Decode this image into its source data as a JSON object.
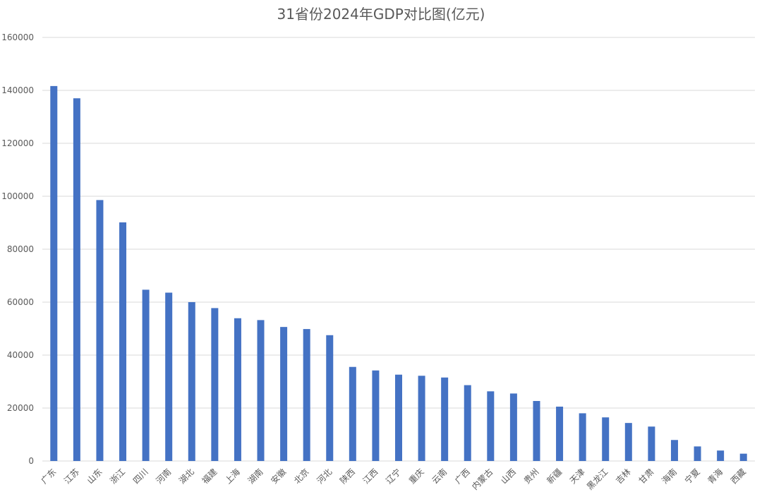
{
  "chart_data": {
    "type": "bar",
    "title": "31省份2024年GDP对比图(亿元)",
    "xlabel": "",
    "ylabel": "",
    "ylim": [
      0,
      160000
    ],
    "yticks": [
      0,
      20000,
      40000,
      60000,
      80000,
      100000,
      120000,
      140000,
      160000
    ],
    "grid": true,
    "legend": "none",
    "bar_color": "#4472c4",
    "categories": [
      "广东",
      "江苏",
      "山东",
      "浙江",
      "四川",
      "河南",
      "湖北",
      "福建",
      "上海",
      "湖南",
      "安徽",
      "北京",
      "河北",
      "陕西",
      "江西",
      "辽宁",
      "重庆",
      "云南",
      "广西",
      "内蒙古",
      "山西",
      "贵州",
      "新疆",
      "天津",
      "黑龙江",
      "吉林",
      "甘肃",
      "海南",
      "宁夏",
      "青海",
      "西藏"
    ],
    "values": [
      141634,
      137008,
      98566,
      90131,
      64697,
      63590,
      60013,
      57761,
      53927,
      53231,
      50625,
      49843,
      47527,
      35539,
      34203,
      32613,
      32193,
      31534,
      28649,
      26314,
      25494,
      22667,
      20534,
      18024,
      16477,
      14362,
      13002,
      7935,
      5503,
      3951,
      2765
    ]
  }
}
